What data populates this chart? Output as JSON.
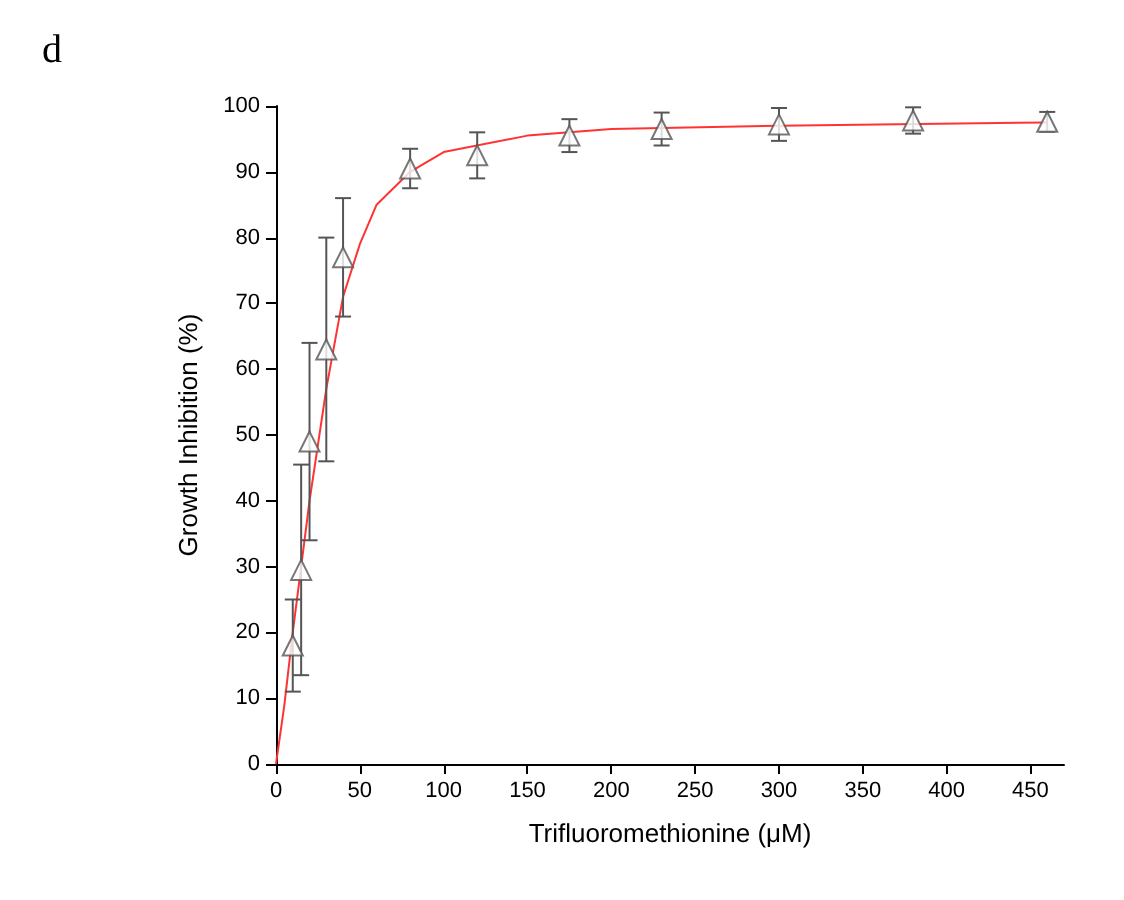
{
  "chart_data": {
    "type": "scatter",
    "xlabel": "Trifluoromethionine (μM)",
    "ylabel": "Growth Inhibition (%)",
    "annotations": [
      "d"
    ],
    "xlim": [
      0,
      470
    ],
    "xticks": [
      0,
      50,
      100,
      150,
      200,
      250,
      300,
      350,
      400,
      450
    ],
    "ylim": [
      0,
      100
    ],
    "yticks": [
      0,
      10,
      20,
      30,
      40,
      50,
      60,
      70,
      80,
      90,
      100
    ],
    "grid": false,
    "series": [
      {
        "color": "#555555",
        "marker": "triangle",
        "x": [
          10,
          15,
          20,
          30,
          40,
          80,
          120,
          175,
          230,
          300,
          380,
          460
        ],
        "values": [
          18,
          29.5,
          49,
          63,
          77,
          90.5,
          92.5,
          95.5,
          96.5,
          97.2,
          97.8,
          97.6
        ],
        "errors": [
          7,
          16,
          15,
          17,
          9,
          3,
          3.5,
          2.5,
          2.5,
          2.5,
          2,
          1.5
        ]
      },
      {
        "type": "line",
        "color": "#ff3333",
        "marker": "none",
        "line_style": "solid",
        "x": [
          0,
          5,
          10,
          15,
          20,
          30,
          40,
          50,
          60,
          80,
          100,
          150,
          200,
          300,
          460
        ],
        "values": [
          0,
          9,
          20,
          30,
          40,
          57,
          71,
          79,
          85,
          90,
          93,
          95.5,
          96.5,
          97,
          97.5
        ]
      }
    ]
  }
}
